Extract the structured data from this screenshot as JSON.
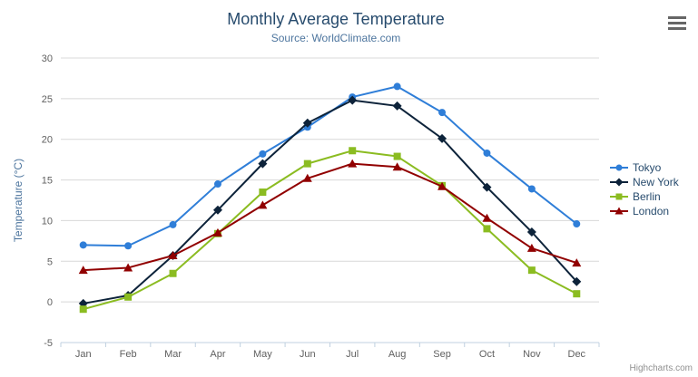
{
  "chart": {
    "credit": "Highcharts.com",
    "context_menu_icon": "hamburger-icon"
  },
  "chart_data": {
    "type": "line",
    "title": "Monthly Average Temperature",
    "subtitle": "Source: WorldClimate.com",
    "categories": [
      "Jan",
      "Feb",
      "Mar",
      "Apr",
      "May",
      "Jun",
      "Jul",
      "Aug",
      "Sep",
      "Oct",
      "Nov",
      "Dec"
    ],
    "xlabel": "",
    "ylabel": "Temperature (°C)",
    "ylim": [
      -5,
      30
    ],
    "ytick_interval": 5,
    "grid": true,
    "legend_position": "right",
    "series": [
      {
        "name": "Tokyo",
        "color": "#2f7ed8",
        "marker": "circle",
        "values": [
          7.0,
          6.9,
          9.5,
          14.5,
          18.2,
          21.5,
          25.2,
          26.5,
          23.3,
          18.3,
          13.9,
          9.6
        ]
      },
      {
        "name": "New York",
        "color": "#0d233a",
        "marker": "diamond",
        "values": [
          -0.2,
          0.8,
          5.7,
          11.3,
          17.0,
          22.0,
          24.8,
          24.1,
          20.1,
          14.1,
          8.6,
          2.5
        ]
      },
      {
        "name": "Berlin",
        "color": "#8bbc21",
        "marker": "square",
        "values": [
          -0.9,
          0.6,
          3.5,
          8.4,
          13.5,
          17.0,
          18.6,
          17.9,
          14.3,
          9.0,
          3.9,
          1.0
        ]
      },
      {
        "name": "London",
        "color": "#910000",
        "marker": "triangle",
        "values": [
          3.9,
          4.2,
          5.7,
          8.5,
          11.9,
          15.2,
          17.0,
          16.6,
          14.2,
          10.3,
          6.6,
          4.8
        ]
      }
    ],
    "style_colors": {
      "title": "#274b6d",
      "subtitle": "#4d759e",
      "axis_title": "#4d759e",
      "tick_label": "#606060",
      "gridline": "#d8d8d8",
      "axis_line": "#c0d0e0",
      "legend_text": "#274b6d",
      "credit": "#909090"
    }
  }
}
